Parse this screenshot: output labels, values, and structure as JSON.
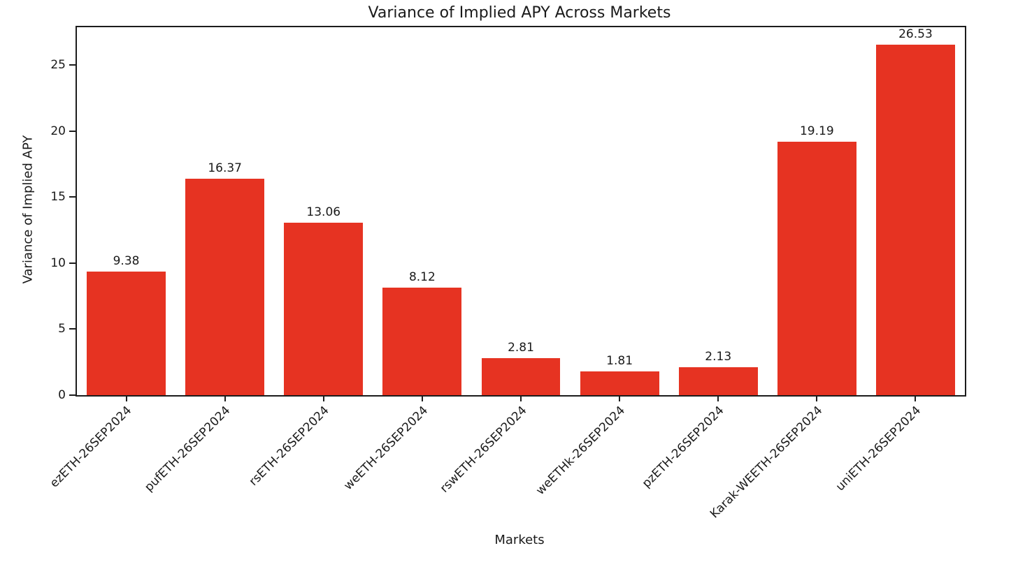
{
  "chart_data": {
    "type": "bar",
    "title": "Variance of Implied APY Across Markets",
    "xlabel": "Markets",
    "ylabel": "Variance of Implied APY",
    "categories": [
      "ezETH-26SEP2024",
      "pufETH-26SEP2024",
      "rsETH-26SEP2024",
      "weETH-26SEP2024",
      "rswETH-26SEP2024",
      "weETHk-26SEP2024",
      "pzETH-26SEP2024",
      "Karak-WEETH-26SEP2024",
      "uniETH-26SEP2024"
    ],
    "values": [
      9.38,
      16.37,
      13.06,
      8.12,
      2.81,
      1.81,
      2.13,
      19.19,
      26.53
    ],
    "value_labels": [
      "9.38",
      "16.37",
      "13.06",
      "8.12",
      "2.81",
      "1.81",
      "2.13",
      "19.19",
      "26.53"
    ],
    "yticks": [
      0,
      5,
      10,
      15,
      20,
      25
    ],
    "ylim": [
      0,
      27.86
    ],
    "bar_color": "#e63322",
    "bar_width_fraction": 0.8,
    "grid": false,
    "legend_position": "none",
    "text_color": "#1a1a1a",
    "axis_color": "#1c1c1c"
  }
}
